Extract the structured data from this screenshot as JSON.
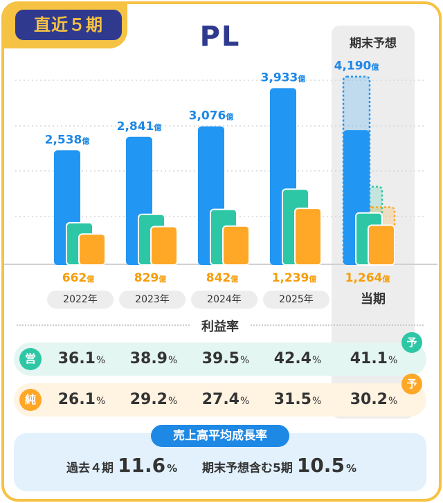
{
  "badge": "直近５期",
  "title": "PL",
  "forecast_label": "期末予想",
  "unit": "億",
  "chart_data": {
    "type": "bar",
    "categories": [
      "2022年",
      "2023年",
      "2024年",
      "2025年",
      "当期"
    ],
    "series": [
      {
        "name": "売上高",
        "color": "#2196F3",
        "values": [
          2538,
          2841,
          3076,
          3933,
          2990
        ]
      },
      {
        "name": "営業利益",
        "color": "#2EC7A5",
        "values": [
          916,
          1105,
          1215,
          1668,
          1135
        ]
      },
      {
        "name": "純利益",
        "color": "#FFA726",
        "values": [
          662,
          829,
          842,
          1239,
          860
        ]
      }
    ],
    "forecast": {
      "category": "当期",
      "values": [
        4190,
        1722,
        1264
      ]
    },
    "revenue_labels": [
      "2,538",
      "2,841",
      "3,076",
      "3,933",
      "4,190"
    ],
    "net_labels": [
      "662",
      "829",
      "842",
      "1,239",
      "1,264"
    ],
    "ylim": [
      0,
      4500
    ],
    "grid": true
  },
  "margins": {
    "title": "利益率",
    "percent": "%",
    "forecast_mark": "予",
    "operating": {
      "label": "営",
      "values": [
        "36.1",
        "38.9",
        "39.5",
        "42.4",
        "41.1"
      ]
    },
    "net": {
      "label": "純",
      "values": [
        "26.1",
        "29.2",
        "27.4",
        "31.5",
        "30.2"
      ]
    }
  },
  "cagr": {
    "title": "売上高平均成長率",
    "past_label": "過去４期",
    "past_value": "11.6",
    "incl_label": "期末予想含む5期",
    "incl_value": "10.5",
    "percent": "%"
  },
  "colors": {
    "accent_yellow": "#F6C244",
    "navy": "#2F3A8F",
    "blue": "#2196F3",
    "green": "#2EC7A5",
    "orange": "#FFA726"
  }
}
